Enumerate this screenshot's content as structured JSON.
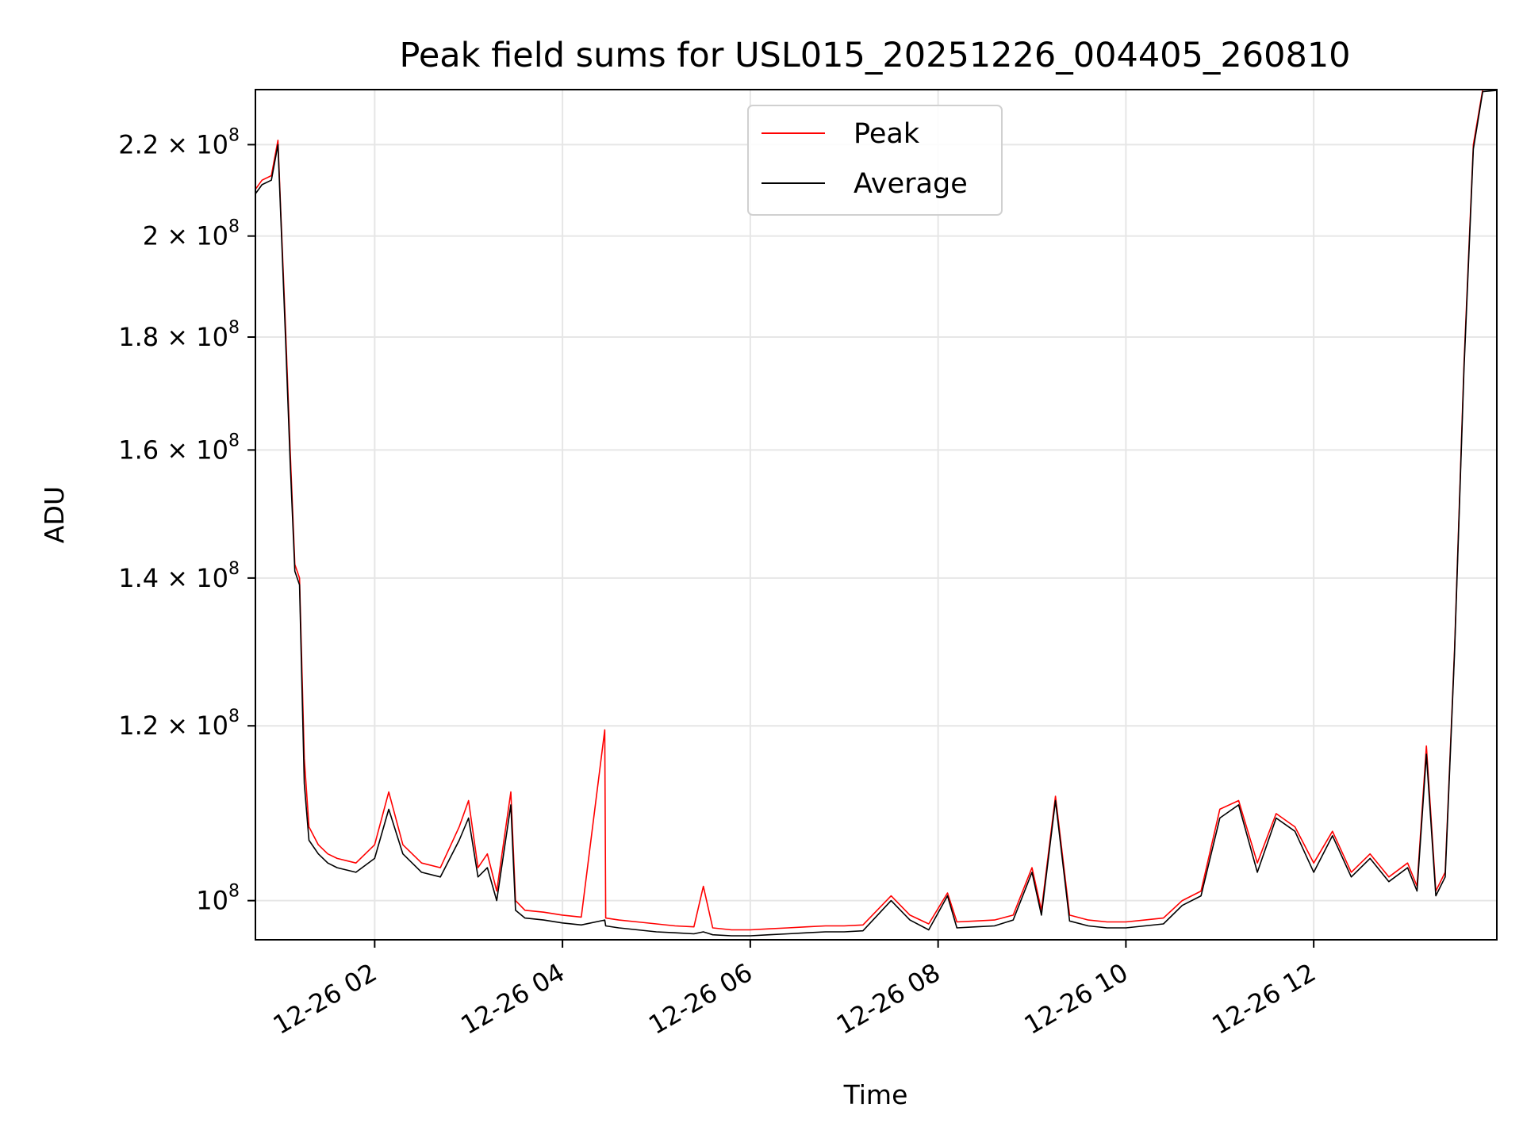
{
  "chart_data": {
    "type": "line",
    "title": "Peak field sums for USL015_20251226_004405_260810",
    "xlabel": "Time",
    "ylabel": "ADU",
    "yscale": "log",
    "xlim_hours": [
      0.73,
      13.95
    ],
    "ylim": [
      96000000,
      233000000
    ],
    "grid": true,
    "x_ticks": [
      {
        "hours": 2,
        "label": "12-26 02"
      },
      {
        "hours": 4,
        "label": "12-26 04"
      },
      {
        "hours": 6,
        "label": "12-26 06"
      },
      {
        "hours": 8,
        "label": "12-26 08"
      },
      {
        "hours": 10,
        "label": "12-26 10"
      },
      {
        "hours": 12,
        "label": "12-26 12"
      }
    ],
    "y_ticks": [
      {
        "value": 100000000,
        "mantissa": "10",
        "exp": "8"
      },
      {
        "value": 120000000,
        "mantissa": "1.2 × 10",
        "exp": "8"
      },
      {
        "value": 140000000,
        "mantissa": "1.4 × 10",
        "exp": "8"
      },
      {
        "value": 160000000,
        "mantissa": "1.6 × 10",
        "exp": "8"
      },
      {
        "value": 180000000,
        "mantissa": "1.8 × 10",
        "exp": "8"
      },
      {
        "value": 200000000,
        "mantissa": "2 × 10",
        "exp": "8"
      },
      {
        "value": 220000000,
        "mantissa": "2.2 × 10",
        "exp": "8"
      }
    ],
    "legend": {
      "position": "upper center",
      "entries": [
        "Peak",
        "Average"
      ]
    },
    "series": [
      {
        "name": "Peak",
        "color": "#ff0000",
        "x_hours": [
          0.73,
          0.8,
          0.9,
          0.97,
          1.0,
          1.05,
          1.1,
          1.15,
          1.2,
          1.25,
          1.3,
          1.4,
          1.5,
          1.6,
          1.8,
          2.0,
          2.15,
          2.3,
          2.5,
          2.7,
          2.9,
          3.0,
          3.1,
          3.2,
          3.3,
          3.45,
          3.5,
          3.6,
          3.8,
          4.0,
          4.2,
          4.45,
          4.46,
          4.6,
          4.8,
          5.0,
          5.2,
          5.4,
          5.5,
          5.6,
          5.8,
          6.0,
          6.2,
          6.4,
          6.6,
          6.8,
          7.0,
          7.2,
          7.5,
          7.7,
          7.9,
          8.1,
          8.2,
          8.4,
          8.6,
          8.8,
          9.0,
          9.1,
          9.25,
          9.4,
          9.6,
          9.8,
          10.0,
          10.2,
          10.4,
          10.6,
          10.8,
          11.0,
          11.2,
          11.4,
          11.6,
          11.8,
          12.0,
          12.2,
          12.4,
          12.6,
          12.8,
          13.0,
          13.1,
          13.2,
          13.3,
          13.4,
          13.5,
          13.6,
          13.7,
          13.8,
          13.95
        ],
        "values": [
          210000000,
          212000000,
          213000000,
          221000000,
          205000000,
          182000000,
          160000000,
          142000000,
          140000000,
          116000000,
          108000000,
          106000000,
          105000000,
          104500000,
          104000000,
          106000000,
          112000000,
          106000000,
          104000000,
          103500000,
          108000000,
          111000000,
          103500000,
          105000000,
          101000000,
          112000000,
          100000000,
          99000000,
          98800000,
          98500000,
          98300000,
          119500000,
          98200000,
          98000000,
          97800000,
          97600000,
          97400000,
          97300000,
          101500000,
          97200000,
          97000000,
          97000000,
          97100000,
          97200000,
          97300000,
          97400000,
          97400000,
          97500000,
          100500000,
          98500000,
          97600000,
          100800000,
          97800000,
          97900000,
          98000000,
          98500000,
          103500000,
          99000000,
          111500000,
          98500000,
          98000000,
          97800000,
          97800000,
          98000000,
          98200000,
          100000000,
          101000000,
          110000000,
          111000000,
          104000000,
          109500000,
          108000000,
          104000000,
          107500000,
          103000000,
          105000000,
          102500000,
          104000000,
          101500000,
          117500000,
          101000000,
          103000000,
          130000000,
          175000000,
          220000000,
          233000000,
          233000000
        ]
      },
      {
        "name": "Average",
        "color": "#000000",
        "x_hours": [
          0.73,
          0.8,
          0.9,
          0.97,
          1.0,
          1.05,
          1.1,
          1.15,
          1.2,
          1.25,
          1.3,
          1.4,
          1.5,
          1.6,
          1.8,
          2.0,
          2.15,
          2.3,
          2.5,
          2.7,
          2.9,
          3.0,
          3.1,
          3.2,
          3.3,
          3.45,
          3.5,
          3.6,
          3.8,
          4.0,
          4.2,
          4.45,
          4.46,
          4.6,
          4.8,
          5.0,
          5.2,
          5.4,
          5.5,
          5.6,
          5.8,
          6.0,
          6.2,
          6.4,
          6.6,
          6.8,
          7.0,
          7.2,
          7.5,
          7.7,
          7.9,
          8.1,
          8.2,
          8.4,
          8.6,
          8.8,
          9.0,
          9.1,
          9.25,
          9.4,
          9.6,
          9.8,
          10.0,
          10.2,
          10.4,
          10.6,
          10.8,
          11.0,
          11.2,
          11.4,
          11.6,
          11.8,
          12.0,
          12.2,
          12.4,
          12.6,
          12.8,
          13.0,
          13.1,
          13.2,
          13.3,
          13.4,
          13.5,
          13.6,
          13.7,
          13.8,
          13.95
        ],
        "values": [
          209000000,
          211000000,
          212000000,
          220000000,
          204000000,
          180000000,
          158000000,
          141000000,
          139000000,
          113000000,
          106500000,
          105000000,
          104000000,
          103500000,
          103000000,
          104500000,
          110000000,
          105000000,
          103000000,
          102500000,
          106500000,
          109000000,
          102500000,
          103500000,
          100000000,
          110500000,
          99000000,
          98200000,
          98000000,
          97700000,
          97500000,
          98000000,
          97400000,
          97200000,
          97000000,
          96800000,
          96700000,
          96600000,
          96800000,
          96500000,
          96400000,
          96400000,
          96500000,
          96600000,
          96700000,
          96800000,
          96800000,
          96900000,
          100000000,
          98000000,
          97000000,
          100500000,
          97200000,
          97300000,
          97400000,
          98000000,
          103000000,
          98500000,
          111000000,
          97900000,
          97400000,
          97200000,
          97200000,
          97400000,
          97600000,
          99500000,
          100500000,
          109000000,
          110500000,
          103000000,
          109000000,
          107500000,
          103000000,
          107000000,
          102500000,
          104500000,
          102000000,
          103500000,
          101000000,
          116500000,
          100500000,
          102500000,
          129500000,
          174000000,
          219000000,
          232500000,
          232800000
        ]
      }
    ]
  }
}
